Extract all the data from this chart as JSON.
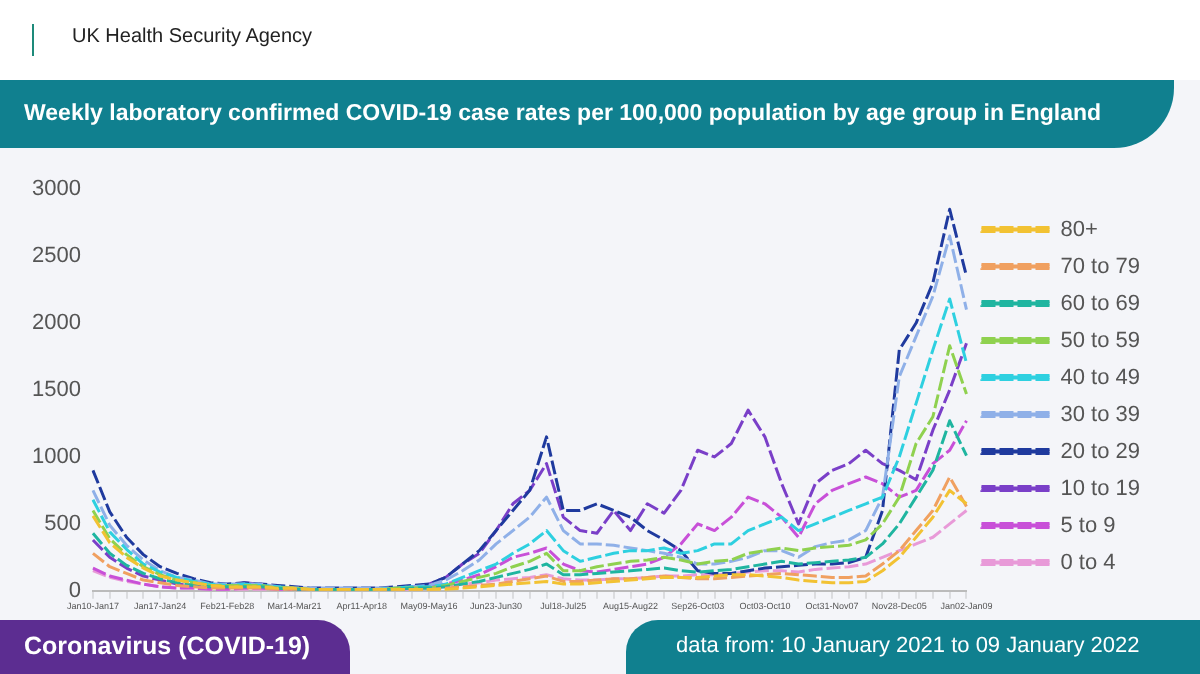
{
  "chart_data": {
    "type": "line",
    "title": "Weekly laboratory confirmed COVID-19 case rates per 100,000 population by age group in England",
    "annotations": [
      "UK Health Security Agency",
      "Coronavirus (COVID-19)",
      "data from: 10 January 2021 to 09 January 2022"
    ],
    "categories": [
      "Jan10-Jan17",
      null,
      null,
      null,
      "Jan17-Jan24",
      null,
      null,
      null,
      "Feb21-Feb28",
      null,
      null,
      null,
      "Mar14-Mar21",
      null,
      null,
      null,
      "Apr11-Apr18",
      null,
      null,
      null,
      "May09-May16",
      null,
      null,
      null,
      "Jun23-Jun30",
      null,
      null,
      null,
      "Jul18-Jul25",
      null,
      null,
      null,
      "Aug15-Aug22",
      null,
      null,
      null,
      "Sep26-Oct03",
      null,
      null,
      null,
      "Oct03-Oct10",
      null,
      null,
      null,
      "Oct31-Nov07",
      null,
      null,
      null,
      "Nov28-Dec05",
      null,
      null,
      null,
      "Jan02-Jan09"
    ],
    "series": [
      {
        "name": "80+",
        "color": "#f2c233",
        "values": [
          560,
          360,
          250,
          170,
          110,
          80,
          60,
          40,
          30,
          30,
          30,
          20,
          20,
          10,
          10,
          10,
          10,
          10,
          10,
          10,
          10,
          10,
          20,
          30,
          40,
          50,
          60,
          70,
          50,
          50,
          60,
          70,
          80,
          90,
          100,
          100,
          100,
          110,
          120,
          120,
          110,
          100,
          80,
          70,
          60,
          60,
          70,
          150,
          250,
          400,
          550,
          750,
          650
        ]
      },
      {
        "name": "70 to 79",
        "color": "#f0a060",
        "values": [
          280,
          180,
          130,
          80,
          60,
          40,
          30,
          20,
          20,
          20,
          20,
          10,
          10,
          10,
          10,
          10,
          10,
          10,
          10,
          10,
          10,
          20,
          30,
          40,
          50,
          70,
          90,
          110,
          70,
          70,
          80,
          90,
          90,
          100,
          110,
          100,
          90,
          90,
          100,
          110,
          120,
          130,
          120,
          110,
          100,
          100,
          110,
          200,
          300,
          450,
          600,
          850,
          630
        ]
      },
      {
        "name": "60 to 69",
        "color": "#1fb5a0",
        "values": [
          430,
          280,
          190,
          130,
          90,
          60,
          40,
          30,
          30,
          30,
          30,
          20,
          10,
          10,
          10,
          10,
          10,
          10,
          10,
          20,
          20,
          30,
          50,
          70,
          100,
          130,
          160,
          200,
          120,
          120,
          130,
          140,
          150,
          160,
          170,
          150,
          140,
          150,
          160,
          180,
          200,
          220,
          200,
          210,
          220,
          230,
          250,
          350,
          500,
          700,
          900,
          1270,
          1010
        ]
      },
      {
        "name": "50 to 59",
        "color": "#8fd14f",
        "values": [
          600,
          390,
          270,
          180,
          120,
          80,
          60,
          40,
          40,
          40,
          40,
          20,
          20,
          10,
          10,
          10,
          10,
          10,
          20,
          20,
          20,
          40,
          70,
          100,
          130,
          180,
          220,
          280,
          150,
          150,
          180,
          200,
          220,
          230,
          250,
          230,
          200,
          220,
          230,
          280,
          300,
          320,
          300,
          320,
          330,
          340,
          380,
          500,
          700,
          1100,
          1300,
          1830,
          1470
        ]
      },
      {
        "name": "40 to 49",
        "color": "#2ed0e0",
        "values": [
          680,
          440,
          310,
          200,
          140,
          100,
          70,
          50,
          40,
          50,
          40,
          30,
          20,
          10,
          10,
          10,
          10,
          10,
          20,
          30,
          30,
          50,
          100,
          150,
          200,
          280,
          350,
          450,
          300,
          220,
          250,
          280,
          300,
          300,
          320,
          280,
          300,
          350,
          350,
          450,
          500,
          550,
          450,
          500,
          550,
          600,
          650,
          700,
          1000,
          1400,
          1800,
          2180,
          1700
        ]
      },
      {
        "name": "30 to 39",
        "color": "#8fb0e8",
        "values": [
          750,
          490,
          340,
          230,
          150,
          100,
          80,
          50,
          50,
          50,
          50,
          30,
          20,
          20,
          20,
          20,
          20,
          20,
          20,
          30,
          40,
          80,
          150,
          230,
          350,
          450,
          550,
          700,
          450,
          350,
          350,
          340,
          320,
          300,
          280,
          250,
          200,
          200,
          220,
          250,
          300,
          300,
          250,
          330,
          360,
          380,
          450,
          700,
          1600,
          1900,
          2200,
          2650,
          2100
        ]
      },
      {
        "name": "20 to 29",
        "color": "#1f3a9e",
        "values": [
          900,
          590,
          400,
          270,
          180,
          130,
          90,
          60,
          50,
          60,
          50,
          40,
          30,
          20,
          20,
          20,
          20,
          20,
          30,
          40,
          50,
          100,
          200,
          300,
          450,
          600,
          750,
          1150,
          600,
          600,
          650,
          600,
          550,
          450,
          380,
          300,
          150,
          130,
          130,
          150,
          170,
          180,
          190,
          200,
          200,
          210,
          250,
          600,
          1800,
          2000,
          2300,
          2850,
          2350
        ]
      },
      {
        "name": "10 to 19",
        "color": "#7a3fc8",
        "values": [
          380,
          250,
          170,
          110,
          80,
          50,
          40,
          30,
          30,
          60,
          50,
          20,
          10,
          10,
          10,
          10,
          10,
          10,
          20,
          30,
          50,
          100,
          200,
          280,
          450,
          650,
          750,
          950,
          550,
          450,
          430,
          600,
          450,
          650,
          580,
          750,
          1050,
          1000,
          1100,
          1350,
          1150,
          800,
          500,
          800,
          900,
          950,
          1050,
          950,
          900,
          830,
          1200,
          1500,
          1850
        ]
      },
      {
        "name": "5 to 9",
        "color": "#c850d8",
        "values": [
          170,
          110,
          80,
          50,
          30,
          20,
          20,
          10,
          10,
          20,
          20,
          10,
          10,
          10,
          10,
          10,
          10,
          10,
          10,
          20,
          30,
          50,
          80,
          120,
          180,
          250,
          280,
          320,
          200,
          150,
          140,
          160,
          180,
          200,
          250,
          350,
          500,
          450,
          550,
          700,
          650,
          550,
          400,
          650,
          750,
          800,
          850,
          800,
          700,
          750,
          950,
          1050,
          1270
        ]
      },
      {
        "name": "0 to 4",
        "color": "#e89ad8",
        "values": [
          150,
          100,
          70,
          50,
          30,
          20,
          20,
          10,
          10,
          10,
          10,
          10,
          10,
          10,
          10,
          10,
          10,
          10,
          10,
          10,
          20,
          30,
          50,
          60,
          80,
          90,
          100,
          120,
          90,
          80,
          80,
          90,
          90,
          100,
          110,
          110,
          120,
          120,
          130,
          140,
          150,
          150,
          140,
          160,
          170,
          180,
          200,
          250,
          300,
          350,
          400,
          500,
          600
        ]
      }
    ],
    "ylim": [
      0,
      3000
    ],
    "yticks": [
      0,
      500,
      1000,
      1500,
      2000,
      2500,
      3000
    ],
    "grid": false,
    "legend": "right",
    "marker": "none",
    "line_style": "dashed"
  }
}
